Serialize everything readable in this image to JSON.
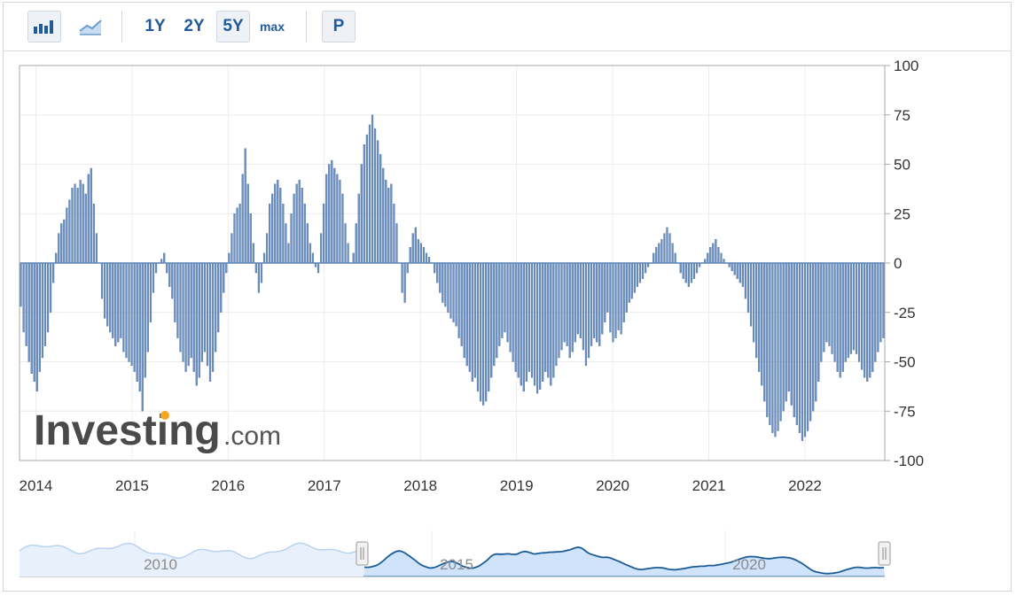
{
  "toolbar": {
    "bar_icon": "bar-chart-icon",
    "line_icon": "area-chart-icon",
    "range_1y": "1Y",
    "range_2y": "2Y",
    "range_5y": "5Y",
    "range_max": "max",
    "p_label": "P",
    "active_range": "5Y"
  },
  "watermark": {
    "brand": "Investing",
    "suffix": ".com",
    "dot_color": "#f5a623"
  },
  "navigator": {
    "year_labels": [
      "2010",
      "2015",
      "2020"
    ]
  },
  "colors": {
    "bar": "#6b8fc0",
    "bar_edge": "#3f6699",
    "nav_line": "#1c5c96",
    "nav_fill": "#cfe4fa"
  },
  "chart_data": {
    "type": "bar",
    "x_tick_labels": [
      "2014",
      "2015",
      "2016",
      "2017",
      "2018",
      "2019",
      "2020",
      "2021",
      "2022"
    ],
    "y_tick_labels": [
      "100",
      "75",
      "50",
      "25",
      "0",
      "-25",
      "-50",
      "-75",
      "-100"
    ],
    "ylim": [
      -100,
      100
    ],
    "grid": true,
    "x_start_year": 2013.83,
    "x_end_year": 2022.83,
    "x_labels_years": [
      2014,
      2015,
      2016,
      2017,
      2018,
      2019,
      2020,
      2021,
      2022
    ],
    "y_ticks": [
      100,
      75,
      50,
      25,
      0,
      -25,
      -50,
      -75,
      -100
    ],
    "weekly_values": [
      -22,
      -35,
      -42,
      -50,
      -56,
      -60,
      -65,
      -55,
      -48,
      -42,
      -35,
      -25,
      -10,
      5,
      15,
      20,
      22,
      28,
      32,
      38,
      40,
      38,
      42,
      40,
      35,
      45,
      48,
      30,
      15,
      0,
      -18,
      -28,
      -32,
      -35,
      -38,
      -42,
      -40,
      -38,
      -45,
      -48,
      -50,
      -52,
      -55,
      -60,
      -65,
      -75,
      -58,
      -45,
      -30,
      -15,
      -5,
      0,
      2,
      5,
      -5,
      -12,
      -18,
      -30,
      -38,
      -45,
      -50,
      -55,
      -52,
      -48,
      -55,
      -62,
      -58,
      -50,
      -45,
      -52,
      -60,
      -55,
      -45,
      -35,
      -25,
      -15,
      -5,
      5,
      15,
      25,
      28,
      30,
      45,
      58,
      40,
      25,
      10,
      -5,
      -15,
      -10,
      5,
      15,
      30,
      35,
      40,
      42,
      38,
      30,
      20,
      10,
      25,
      35,
      40,
      42,
      38,
      30,
      20,
      10,
      5,
      -2,
      -5,
      15,
      30,
      45,
      50,
      52,
      48,
      45,
      42,
      35,
      20,
      10,
      0,
      5,
      20,
      35,
      50,
      60,
      65,
      70,
      75,
      68,
      62,
      55,
      48,
      42,
      38,
      40,
      30,
      20,
      0,
      -15,
      -20,
      -5,
      8,
      15,
      18,
      12,
      10,
      8,
      5,
      3,
      0,
      -5,
      -10,
      -15,
      -20,
      -22,
      -25,
      -28,
      -30,
      -32,
      -38,
      -42,
      -48,
      -52,
      -55,
      -60,
      -58,
      -65,
      -70,
      -72,
      -70,
      -65,
      -58,
      -52,
      -48,
      -42,
      -38,
      -35,
      -40,
      -45,
      -50,
      -55,
      -58,
      -62,
      -65,
      -60,
      -55,
      -58,
      -62,
      -66,
      -64,
      -60,
      -55,
      -58,
      -62,
      -58,
      -52,
      -48,
      -44,
      -40,
      -42,
      -48,
      -45,
      -40,
      -36,
      -38,
      -44,
      -52,
      -48,
      -42,
      -38,
      -40,
      -42,
      -36,
      -30,
      -25,
      -35,
      -40,
      -38,
      -34,
      -36,
      -30,
      -25,
      -20,
      -18,
      -15,
      -12,
      -10,
      -8,
      -5,
      -2,
      0,
      5,
      8,
      10,
      12,
      15,
      18,
      15,
      10,
      5,
      0,
      -5,
      -8,
      -10,
      -12,
      -10,
      -8,
      -5,
      -2,
      0,
      2,
      5,
      8,
      10,
      12,
      8,
      5,
      2,
      0,
      -2,
      -4,
      -6,
      -8,
      -10,
      -12,
      -18,
      -25,
      -32,
      -40,
      -48,
      -55,
      -62,
      -70,
      -78,
      -82,
      -86,
      -88,
      -85,
      -80,
      -75,
      -70,
      -65,
      -72,
      -78,
      -82,
      -86,
      -90,
      -88,
      -85,
      -80,
      -75,
      -70,
      -60,
      -50,
      -45,
      -40,
      -42,
      -46,
      -50,
      -55,
      -58,
      -55,
      -50,
      -48,
      -46,
      -44,
      -46,
      -50,
      -54,
      -58,
      -60,
      -58,
      -55,
      -50,
      -45,
      -40,
      -38
    ]
  }
}
